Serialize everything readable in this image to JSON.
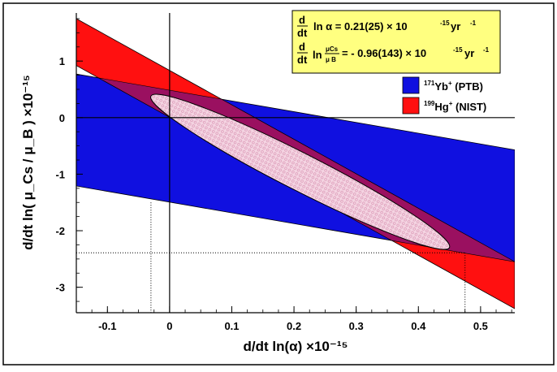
{
  "chart_data": {
    "type": "area",
    "xlabel": "d/dt ln(α) ×10⁻¹⁵",
    "ylabel": "d/dt ln( μ_Cs / μ_B ) ×10⁻¹⁵",
    "xlim": [
      -0.15,
      0.555
    ],
    "ylim": [
      -3.45,
      1.85
    ],
    "x_ticks": [
      "-0.1",
      "0",
      "0.1",
      "0.2",
      "0.3",
      "0.4",
      "0.5"
    ],
    "y_ticks": [
      "1",
      "0",
      "-1",
      "-2",
      "-3"
    ],
    "colors": {
      "ptb": "#1010e0",
      "nist": "#ff1010",
      "overlap": "#9a1060",
      "ellipse": "#f0c8d8",
      "annotation_bg": "#ffff80"
    },
    "series": [
      {
        "name": "171Yb+ (PTB)",
        "legend": {
          "sup": "171",
          "text": "Yb",
          "tail": " (PTB)"
        },
        "polygon": [
          [
            -0.15,
            0.77
          ],
          [
            0.555,
            -0.57
          ],
          [
            0.555,
            -2.55
          ],
          [
            -0.15,
            -1.21
          ]
        ]
      },
      {
        "name": "199Hg+ (NIST)",
        "legend": {
          "sup": "199",
          "text": "Hg",
          "tail": " (NIST)"
        },
        "polygon": [
          [
            -0.15,
            1.75
          ],
          [
            0.555,
            -2.55
          ],
          [
            0.555,
            -3.38
          ],
          [
            -0.15,
            0.92
          ]
        ]
      }
    ],
    "ellipse": {
      "cx": 0.21,
      "cy": -0.96,
      "long_axis_end": [
        -0.03,
        0.38
      ]
    },
    "reference_lines": {
      "x_lo": -0.03,
      "x_hi": 0.475,
      "y_lo": -2.39
    },
    "annotation": {
      "line1_dt_top": "d",
      "line1_dt_bot": "dt",
      "line1": "ln α = 0.21(25) × 10",
      "line1_exp": "-15",
      "line1_unit": " yr",
      "line1_unit_exp": "-1",
      "line2_dt_top": "d",
      "line2_dt_bot": "dt",
      "line2_ln": "ln",
      "line2_frac_top": "μCs",
      "line2_frac_bot": "μ B",
      "line2": "= - 0.96(143) × 10",
      "line2_exp": "-15",
      "line2_unit": " yr",
      "line2_unit_exp": "-1"
    }
  }
}
